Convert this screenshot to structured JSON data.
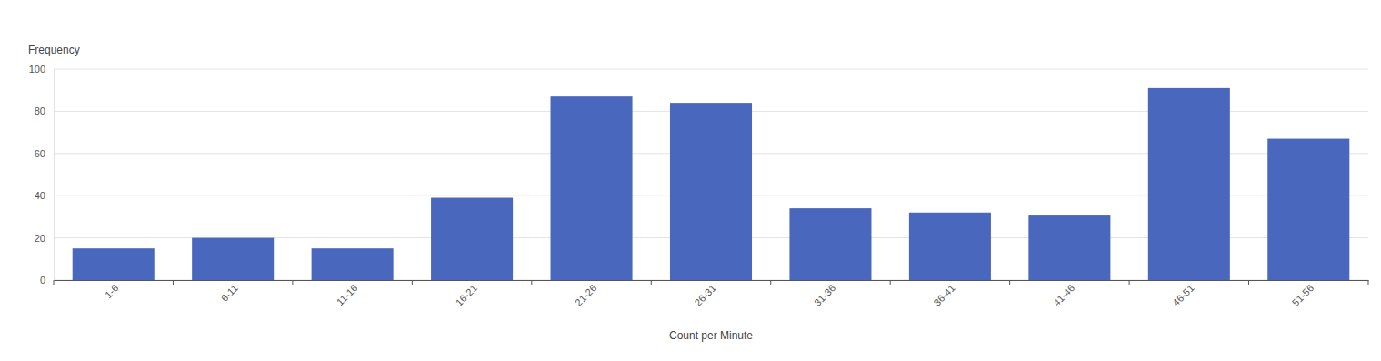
{
  "chart_data": {
    "type": "bar",
    "x_label": "Count per Minute",
    "y_label": "Frequency",
    "categories": [
      "1-6",
      "6-11",
      "11-16",
      "16-21",
      "21-26",
      "26-31",
      "31-36",
      "36-41",
      "41-46",
      "46-51",
      "51-56"
    ],
    "values": [
      15,
      20,
      15,
      39,
      87,
      84,
      34,
      32,
      31,
      91,
      67
    ],
    "color": "#4967bd",
    "ylim": [
      0,
      100
    ],
    "yticks": [
      0,
      20,
      40,
      60,
      80,
      100
    ],
    "grid": true
  }
}
